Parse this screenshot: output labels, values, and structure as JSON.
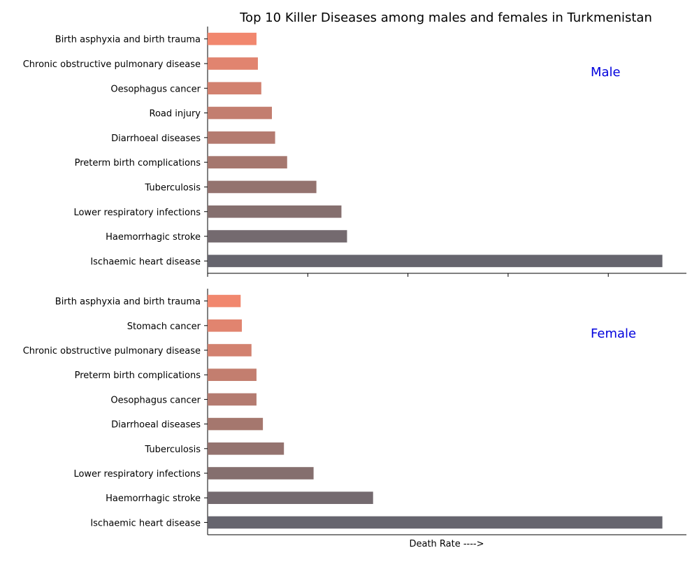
{
  "chart_data": [
    {
      "type": "bar",
      "orientation": "horizontal",
      "title": "Top 10 Killer Diseases among males and females in Turkmenistan",
      "panel_label": "Male",
      "categories": [
        "Ischaemic heart disease",
        "Haemorrhagic stroke",
        "Lower respiratory infections",
        "Tuberculosis",
        "Preterm birth complications",
        "Diarrhoeal diseases",
        "Road injury",
        "Oesophagus cancer",
        "Chronic obstructive pulmonary disease",
        "Birth asphyxia and birth trauma"
      ],
      "values": [
        227,
        69.6,
        66.8,
        54.3,
        39.7,
        33.7,
        32.1,
        26.8,
        25.1,
        24.4
      ],
      "xlim": [
        0,
        239
      ],
      "xtick_labels_shown": false,
      "colors": [
        "#66656e",
        "#746a6f",
        "#856f6e",
        "#94736f",
        "#a5776e",
        "#b47b70",
        "#c37e6f",
        "#d2816f",
        "#e1846f",
        "#f1876e"
      ]
    },
    {
      "type": "bar",
      "orientation": "horizontal",
      "panel_label": "Female",
      "xlabel": "Death Rate ---->",
      "categories": [
        "Ischaemic heart disease",
        "Haemorrhagic stroke",
        "Lower respiratory infections",
        "Tuberculosis",
        "Diarrhoeal diseases",
        "Oesophagus cancer",
        "Preterm birth complications",
        "Chronic obstructive pulmonary disease",
        "Stomach cancer",
        "Birth asphyxia and birth trauma"
      ],
      "values": [
        227,
        82.6,
        52.9,
        38.1,
        27.6,
        24.4,
        24.4,
        21.9,
        17.1,
        16.5
      ],
      "xlim": [
        0,
        239
      ],
      "xtick_labels_shown": false,
      "colors": [
        "#66656e",
        "#746a6f",
        "#856f6e",
        "#94736f",
        "#a5776e",
        "#b47b70",
        "#c37e6f",
        "#d2816f",
        "#e1846f",
        "#f1876e"
      ]
    }
  ],
  "label_color": "#0000dd"
}
